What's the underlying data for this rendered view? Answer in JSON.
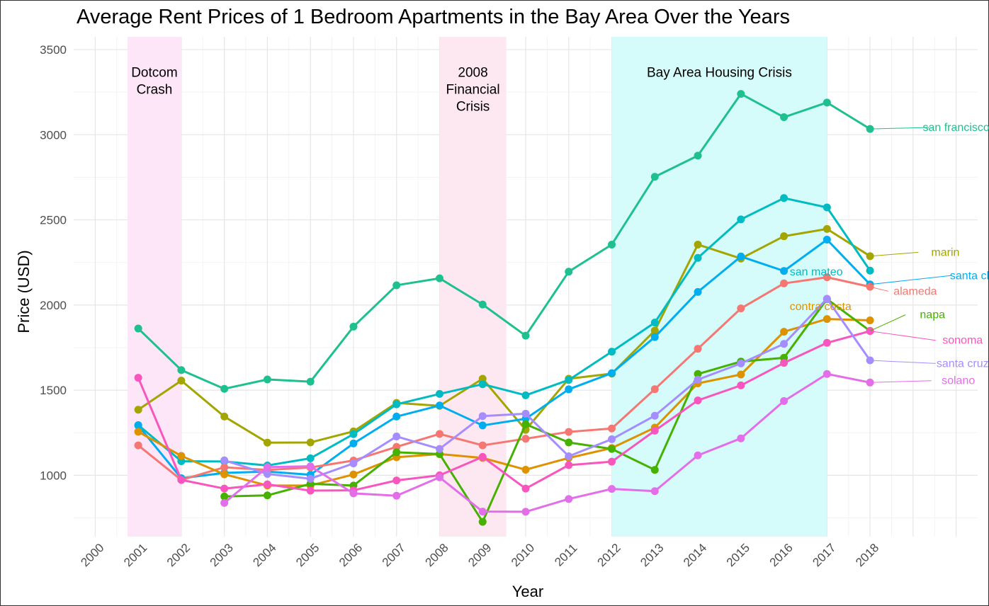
{
  "chart_data": {
    "type": "line",
    "title": "Average Rent Prices of 1 Bedroom Apartments in the Bay Area Over the Years",
    "xlabel": "Year",
    "ylabel": "Price (USD)",
    "x_ticks": [
      "2000",
      "2001",
      "2002",
      "2003",
      "2004",
      "2005",
      "2006",
      "2007",
      "2008",
      "2009",
      "2010",
      "2011",
      "2012",
      "2013",
      "2014",
      "2015",
      "2016",
      "2017",
      "2018"
    ],
    "y_ticks": [
      1000,
      1500,
      2000,
      2500,
      3000,
      3500
    ],
    "xlim": [
      1999.5,
      2020.5
    ],
    "ylim": [
      640,
      3575
    ],
    "grid": true,
    "legend": "direct labels at right",
    "bands": [
      {
        "start": 2000.75,
        "end": 2002,
        "label": [
          "Dotcom",
          "Crash"
        ],
        "color": "#fde6f7"
      },
      {
        "start": 2008,
        "end": 2009.55,
        "label": [
          "2008",
          "Financial",
          "Crisis"
        ],
        "color": "#fde8f2"
      },
      {
        "start": 2012,
        "end": 2017,
        "label": [
          "Bay Area Housing Crisis"
        ],
        "color": "#d6fbfb"
      }
    ],
    "x": [
      2001,
      2002,
      2003,
      2004,
      2005,
      2006,
      2007,
      2008,
      2009,
      2010,
      2011,
      2012,
      2013,
      2014,
      2015,
      2016,
      2017,
      2018
    ],
    "series": [
      {
        "name": "san francisco",
        "color": "#1ec08f",
        "values": [
          1862,
          1618,
          1508,
          1563,
          1550,
          1873,
          2116,
          2157,
          2003,
          1820,
          2196,
          2355,
          2753,
          2877,
          3240,
          3103,
          3189,
          3034
        ]
      },
      {
        "name": "marin",
        "color": "#a3a500",
        "values": [
          1385,
          1556,
          1345,
          1192,
          1193,
          1258,
          1425,
          1408,
          1567,
          1267,
          1567,
          1597,
          1850,
          2355,
          2273,
          2404,
          2447,
          2287
        ]
      },
      {
        "name": "san mateo",
        "color": "#00bcc2",
        "values": [
          1295,
          1083,
          1081,
          1058,
          1100,
          1242,
          1417,
          1478,
          1535,
          1470,
          1560,
          1726,
          1897,
          2277,
          2503,
          2628,
          2573,
          2202
        ]
      },
      {
        "name": "santa clara",
        "color": "#00aeef",
        "values": [
          1292,
          983,
          1014,
          1022,
          1003,
          1187,
          1345,
          1410,
          1293,
          1332,
          1505,
          1600,
          1812,
          2077,
          2285,
          2200,
          2384,
          2121
        ]
      },
      {
        "name": "alameda",
        "color": "#f67771",
        "values": [
          1176,
          973,
          1047,
          1032,
          1046,
          1087,
          1167,
          1243,
          1176,
          1215,
          1255,
          1275,
          1506,
          1743,
          1980,
          2127,
          2163,
          2107
        ]
      },
      {
        "name": "contra costa",
        "color": "#dd9200",
        "values": [
          1256,
          1114,
          1006,
          940,
          940,
          1005,
          1106,
          1125,
          1102,
          1033,
          1102,
          1160,
          1280,
          1540,
          1592,
          1843,
          1918,
          1910
        ]
      },
      {
        "name": "napa",
        "color": "#46b100",
        "values": [
          null,
          null,
          876,
          882,
          950,
          940,
          1135,
          1125,
          727,
          1300,
          1193,
          1155,
          1032,
          1595,
          1668,
          1690,
          2035,
          1848
        ]
      },
      {
        "name": "sonoma",
        "color": "#f855be",
        "values": [
          1573,
          973,
          922,
          947,
          910,
          912,
          970,
          1000,
          1108,
          922,
          1060,
          1080,
          1262,
          1440,
          1528,
          1660,
          1778,
          1847
        ]
      },
      {
        "name": "santa cruz",
        "color": "#a68dff",
        "values": [
          null,
          null,
          1088,
          1008,
          980,
          1070,
          1228,
          1155,
          1348,
          1362,
          1112,
          1212,
          1350,
          1562,
          1657,
          1772,
          2037,
          1675
        ]
      },
      {
        "name": "solano",
        "color": "#e36ee9",
        "values": [
          null,
          null,
          838,
          1048,
          1053,
          894,
          880,
          988,
          787,
          786,
          861,
          920,
          907,
          1117,
          1217,
          1436,
          1595,
          1545
        ]
      }
    ],
    "series_labels": [
      {
        "name": "san francisco",
        "color": "#1ec08f",
        "lx": 2020,
        "ly": 3022,
        "anchor": "middle"
      },
      {
        "name": "marin",
        "color": "#a3a500",
        "lx": 2019.75,
        "ly": 2289,
        "anchor": "middle"
      },
      {
        "name": "san mateo",
        "color": "#00bcc2",
        "lx": 2016.75,
        "ly": 2173,
        "anchor": "middle"
      },
      {
        "name": "santa clara",
        "color": "#00aeef",
        "lx": 2020.5,
        "ly": 2152,
        "anchor": "middle"
      },
      {
        "name": "alameda",
        "color": "#f67771",
        "lx": 2019.05,
        "ly": 2060,
        "anchor": "middle"
      },
      {
        "name": "contra costa",
        "color": "#dd9200",
        "lx": 2016.85,
        "ly": 1971,
        "anchor": "middle"
      },
      {
        "name": "napa",
        "color": "#46b100",
        "lx": 2019.45,
        "ly": 1922,
        "anchor": "middle"
      },
      {
        "name": "sonoma",
        "color": "#f855be",
        "lx": 2020.15,
        "ly": 1772,
        "anchor": "middle"
      },
      {
        "name": "santa cruz",
        "color": "#a68dff",
        "lx": 2020.15,
        "ly": 1636,
        "anchor": "middle"
      },
      {
        "name": "solano",
        "color": "#e36ee9",
        "lx": 2020.05,
        "ly": 1535,
        "anchor": "middle"
      }
    ]
  }
}
